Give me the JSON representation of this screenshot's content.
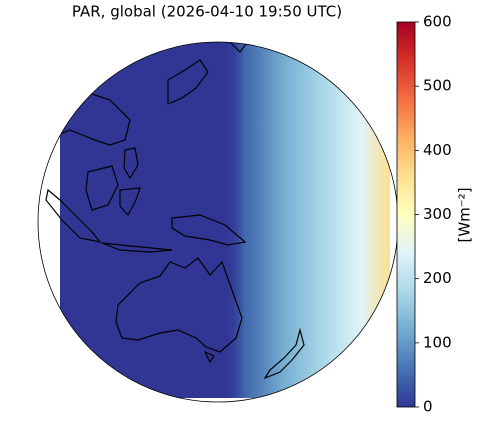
{
  "title": "PAR, global (2026-04-10 19:50 UTC)",
  "colorbar": {
    "label": "[Wm⁻²]",
    "lim": [
      0,
      600
    ],
    "ticks": [
      0,
      100,
      200,
      300,
      400,
      500,
      600
    ],
    "colormap": [
      "#313695",
      "#4575b4",
      "#74add1",
      "#abd9e9",
      "#e0f3f8",
      "#ffffbf",
      "#fee090",
      "#fdae61",
      "#f46d43",
      "#d73027",
      "#a50026"
    ]
  }
}
